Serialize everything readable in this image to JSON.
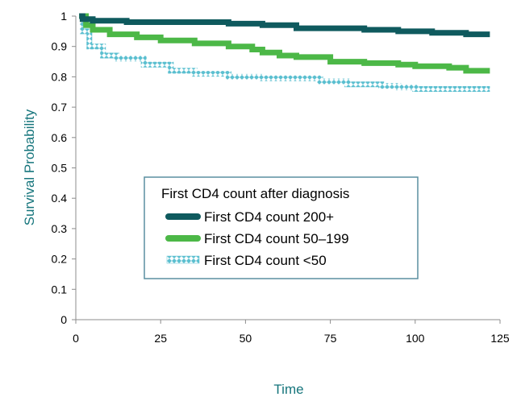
{
  "chart_data": {
    "type": "line",
    "title": "",
    "xlabel": "Time",
    "ylabel": "Survival Probability",
    "xlim": [
      0,
      125
    ],
    "ylim": [
      0,
      1
    ],
    "x_ticks": [
      0,
      25,
      50,
      75,
      100,
      125
    ],
    "y_ticks": [
      0,
      0.1,
      0.2,
      0.3,
      0.4,
      0.5,
      0.6,
      0.7,
      0.8,
      0.9,
      1
    ],
    "y_tick_labels": [
      "0",
      "0.1",
      "0.2",
      "0.3",
      "0.4",
      "0.5",
      "0.6",
      "0.7",
      "0.8",
      "0.9",
      "1"
    ],
    "grid": false,
    "legend": {
      "title": "First CD4 count after diagnosis",
      "placement": "center"
    },
    "series": [
      {
        "name": "First CD4 count 200+",
        "color": "#0f5a5e",
        "style": "solid-thick",
        "points": [
          [
            1,
            1
          ],
          [
            2,
            0.99
          ],
          [
            5,
            0.985
          ],
          [
            15,
            0.98
          ],
          [
            45,
            0.975
          ],
          [
            55,
            0.97
          ],
          [
            65,
            0.96
          ],
          [
            85,
            0.955
          ],
          [
            95,
            0.95
          ],
          [
            105,
            0.945
          ],
          [
            115,
            0.94
          ],
          [
            122,
            0.94
          ]
        ]
      },
      {
        "name": "First CD4 count 50–199",
        "color": "#4cb847",
        "style": "solid-thick",
        "points": [
          [
            1,
            1
          ],
          [
            3,
            0.97
          ],
          [
            5,
            0.955
          ],
          [
            10,
            0.94
          ],
          [
            18,
            0.93
          ],
          [
            25,
            0.92
          ],
          [
            35,
            0.91
          ],
          [
            45,
            0.9
          ],
          [
            52,
            0.89
          ],
          [
            55,
            0.88
          ],
          [
            60,
            0.87
          ],
          [
            65,
            0.865
          ],
          [
            75,
            0.85
          ],
          [
            85,
            0.845
          ],
          [
            95,
            0.84
          ],
          [
            100,
            0.835
          ],
          [
            110,
            0.83
          ],
          [
            115,
            0.82
          ],
          [
            122,
            0.82
          ]
        ]
      },
      {
        "name": "First CD4 count <50",
        "color": "#5bbfd0",
        "style": "patterned",
        "points": [
          [
            1,
            1
          ],
          [
            2,
            0.95
          ],
          [
            4,
            0.9
          ],
          [
            8,
            0.87
          ],
          [
            12,
            0.86
          ],
          [
            20,
            0.84
          ],
          [
            28,
            0.82
          ],
          [
            35,
            0.81
          ],
          [
            45,
            0.8
          ],
          [
            55,
            0.795
          ],
          [
            65,
            0.795
          ],
          [
            72,
            0.785
          ],
          [
            80,
            0.775
          ],
          [
            90,
            0.77
          ],
          [
            95,
            0.765
          ],
          [
            100,
            0.76
          ],
          [
            122,
            0.76
          ]
        ]
      }
    ]
  }
}
